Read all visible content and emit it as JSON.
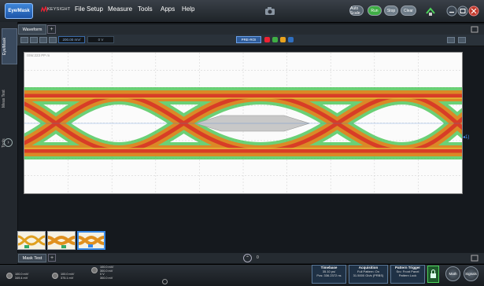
{
  "app": {
    "mode_button": "Eye/Mask",
    "brand": "KEYSIGHT",
    "menu": [
      "File",
      "Setup",
      "Measure",
      "Tools",
      "Apps",
      "Help"
    ],
    "buttons": {
      "auto": "Auto Scale",
      "run": "Run",
      "stop": "Stop",
      "clear": "Clear"
    },
    "colors": {
      "run": "#3fae45",
      "stop": "#6e7c88",
      "accent": "#2f6fc0",
      "trace_green": "#2fbf3a",
      "trace_orange": "#e8821e",
      "trace_red": "#d83028"
    }
  },
  "left_tabs": [
    "Eye/Mask",
    "Meas Test",
    "Tools"
  ],
  "waveform": {
    "tab_label": "Waveform",
    "scale_value": "200.00 mV/",
    "offset_value": "0 V",
    "center_field": "PRE-ROI",
    "ref_label": "ISW.223 PP m"
  },
  "thumbnails": [
    {
      "index": "1",
      "selected": false
    },
    {
      "index": "2",
      "selected": false
    },
    {
      "index": "3",
      "selected": true
    }
  ],
  "mask_test": {
    "tab_label": "Mask Test",
    "count": "0"
  },
  "bottom": {
    "channels": [
      {
        "line1": "100.0 mV/",
        "line2": "349.4 mV"
      },
      {
        "line1": "100.0 mV/",
        "line2": "375.1 mV"
      },
      {
        "line1": "100.0 mV/",
        "line2": "300.0 mV",
        "line3": "0 V",
        "line4": "300.0 mV"
      }
    ],
    "timebase": {
      "title": "Timebase",
      "line1": "35.10 ps/",
      "line2": "Pos: 336.2372 ns"
    },
    "acquisition": {
      "title": "Acquisition",
      "line1": "Full Pattern: On",
      "line2": "31.5000 Gb/s (PRBS)"
    },
    "trigger": {
      "title": "Pattern Trigger",
      "line1": "Src: Front Panel",
      "line2": "Pattern Lock"
    },
    "right_buttons": {
      "math": "Math",
      "signals": "Signals"
    }
  }
}
